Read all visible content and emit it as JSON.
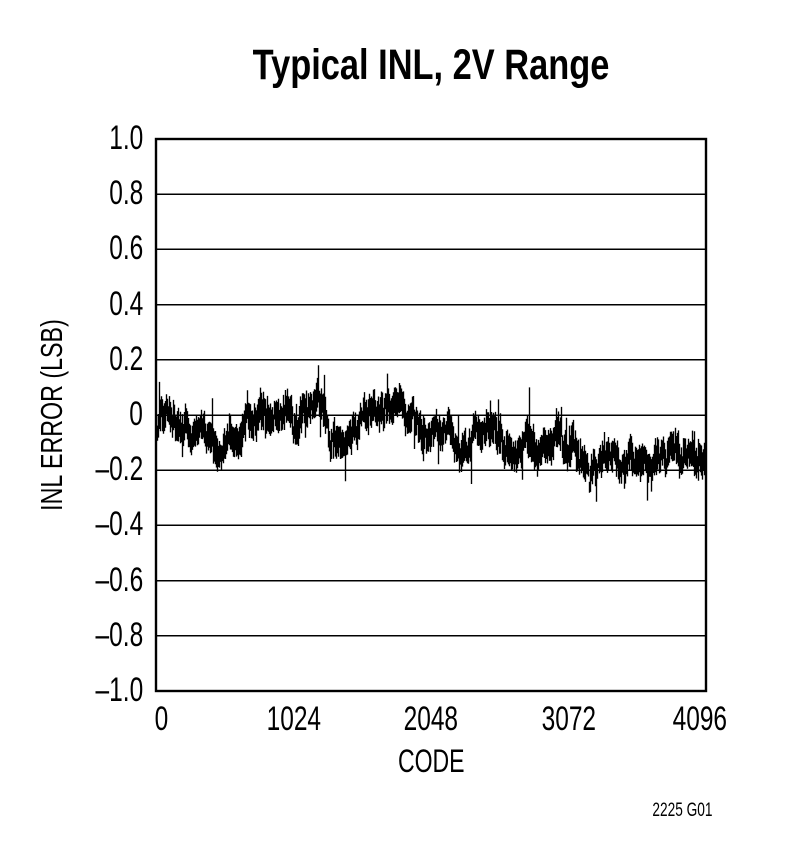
{
  "chart_data": {
    "type": "line",
    "title": "Typical INL, 2V Range",
    "xlabel": "CODE",
    "ylabel": "INL ERROR (LSB)",
    "caption": "2225 G01",
    "xlim": [
      0,
      4096
    ],
    "ylim": [
      -1.0,
      1.0
    ],
    "x_ticks": [
      0,
      1024,
      2048,
      3072,
      4096
    ],
    "x_tick_labels": [
      "0",
      "1024",
      "2048",
      "3072",
      "4096"
    ],
    "y_ticks": [
      1.0,
      0.8,
      0.6,
      0.4,
      0.2,
      0,
      -0.2,
      -0.4,
      -0.6,
      -0.8,
      -1.0
    ],
    "y_tick_labels": [
      "1.0",
      "0.8",
      "0.6",
      "0.4",
      "0.2",
      "0",
      "–0.2",
      "–0.4",
      "–0.6",
      "–0.8",
      "–1.0"
    ],
    "grid": "horizontal-only",
    "legend": "none",
    "line_color": "#000000",
    "background_color": "#ffffff",
    "series": [
      {
        "name": "INL error",
        "n_points": 4096,
        "appearance": "dense-noise-band",
        "envelope_mean_points": [
          [
            0,
            -0.05
          ],
          [
            60,
            -0.07
          ],
          [
            150,
            -0.1
          ],
          [
            250,
            -0.09
          ],
          [
            400,
            -0.11
          ],
          [
            550,
            -0.08
          ],
          [
            700,
            -0.07
          ],
          [
            850,
            -0.06
          ],
          [
            1000,
            -0.04
          ],
          [
            1100,
            -0.01
          ],
          [
            1200,
            0.02
          ],
          [
            1280,
            -0.02
          ],
          [
            1380,
            -0.13
          ],
          [
            1480,
            -0.02
          ],
          [
            1580,
            0.01
          ],
          [
            1680,
            0.03
          ],
          [
            1780,
            0.02
          ],
          [
            1880,
            -0.02
          ],
          [
            1980,
            -0.05
          ],
          [
            2080,
            -0.03
          ],
          [
            2180,
            -0.04
          ],
          [
            2300,
            -0.13
          ],
          [
            2400,
            -0.12
          ],
          [
            2500,
            -0.07
          ],
          [
            2650,
            -0.13
          ],
          [
            2780,
            -0.1
          ],
          [
            2900,
            -0.12
          ],
          [
            3050,
            -0.11
          ],
          [
            3230,
            -0.16
          ],
          [
            3350,
            -0.13
          ],
          [
            3500,
            -0.15
          ],
          [
            3650,
            -0.19
          ],
          [
            3800,
            -0.14
          ],
          [
            3950,
            -0.11
          ],
          [
            4096,
            -0.1
          ]
        ],
        "noise_peak_to_peak_lsb": 0.12,
        "slow_wander_std_lsb": 0.033,
        "notable_extremes": [
          [
            25,
            0.12
          ],
          [
            1208,
            0.18
          ],
          [
            1410,
            -0.24
          ],
          [
            1723,
            0.15
          ],
          [
            2350,
            -0.25
          ],
          [
            2783,
            0.1
          ],
          [
            3058,
            -0.01
          ],
          [
            3230,
            -0.27
          ],
          [
            3660,
            -0.31
          ]
        ],
        "render_seed": 9
      }
    ]
  }
}
